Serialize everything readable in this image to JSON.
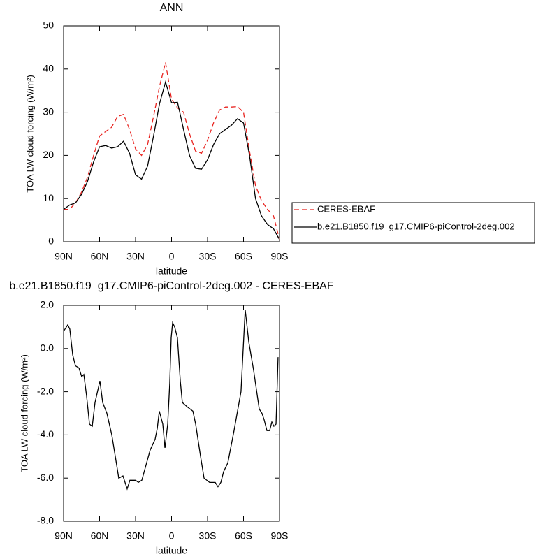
{
  "chart_data": [
    {
      "type": "line",
      "title": "ANN",
      "x_label": "latitude",
      "y_label": "TOA LW cloud forcing (W/m²)",
      "x": [
        90,
        85,
        80,
        75,
        70,
        65,
        60,
        55,
        50,
        45,
        40,
        35,
        30,
        25,
        20,
        15,
        10,
        5,
        0,
        -5,
        -10,
        -15,
        -20,
        -25,
        -30,
        -35,
        -40,
        -45,
        -50,
        -55,
        -60,
        -65,
        -70,
        -75,
        -80,
        -85,
        -90
      ],
      "series": [
        {
          "name": "CERES-EBAF",
          "color": "#e8231f",
          "line_style": "dashed",
          "values": [
            7.5,
            7.5,
            9,
            11.5,
            15,
            20,
            24.5,
            25.5,
            26.5,
            29,
            29.5,
            26,
            21.5,
            20,
            22.5,
            29,
            36,
            41.5,
            33,
            31,
            30,
            25,
            21,
            20.5,
            23.5,
            27.5,
            30.5,
            31.2,
            31.2,
            31.3,
            30,
            21,
            13,
            9.5,
            7.5,
            6,
            0.5
          ]
        },
        {
          "name": "b.e21.B1850.f19_g17.CMIP6-piControl-2deg.002",
          "color": "#000000",
          "line_style": "solid",
          "values": [
            7.5,
            8.5,
            9,
            11,
            14,
            18.5,
            22,
            22.3,
            21.7,
            22,
            23.3,
            20.5,
            15.5,
            14.5,
            17.5,
            24.5,
            32,
            37,
            32.2,
            32.3,
            26,
            20,
            17,
            16.8,
            19,
            22.5,
            25,
            26,
            27,
            28.5,
            27.5,
            20,
            10,
            6,
            4,
            3,
            0.5
          ]
        }
      ],
      "xlim": [
        90,
        -90
      ],
      "xticks": [
        {
          "value": 90,
          "label": "90N"
        },
        {
          "value": 60,
          "label": "60N"
        },
        {
          "value": 30,
          "label": "30N"
        },
        0,
        {
          "value": -30,
          "label": "30S"
        },
        {
          "value": -60,
          "label": "60S"
        },
        {
          "value": -90,
          "label": "90S"
        }
      ],
      "ylim": [
        0,
        50
      ],
      "yticks": [
        0,
        10,
        20,
        30,
        40,
        50
      ],
      "legend": "outside right"
    },
    {
      "type": "line",
      "title": "b.e21.B1850.f19_g17.CMIP6-piControl-2deg.002 - CERES-EBAF",
      "x_label": "latitude",
      "y_label": "TOA LW cloud forcing (W/m²)",
      "x": [
        90.0,
        86.5,
        84.8,
        82.4,
        80.1,
        77.2,
        74.9,
        73.1,
        70.8,
        68.4,
        66.1,
        63.8,
        59.7,
        57.4,
        53.9,
        49.8,
        46.3,
        44.0,
        40.5,
        37.0,
        34.7,
        30.0,
        27.7,
        24.8,
        21.8,
        17.8,
        13.7,
        11.9,
        10.2,
        7.3,
        5.5,
        3.2,
        1.5,
        0.3,
        -0.9,
        -2.6,
        -4.9,
        -7.3,
        -9.0,
        -13.1,
        -17.8,
        -20.1,
        -24.2,
        -27.1,
        -31.7,
        -36.4,
        -38.7,
        -41.1,
        -43.4,
        -46.9,
        -52.1,
        -57.9,
        -61.4,
        -64.4,
        -68.4,
        -73.1,
        -75.4,
        -77.2,
        -79.5,
        -81.8,
        -83.6,
        -85.3,
        -87.1,
        -88.8
      ],
      "values": [
        0.8,
        1.1,
        0.9,
        -0.3,
        -0.8,
        -0.9,
        -1.3,
        -1.2,
        -2.2,
        -3.5,
        -3.6,
        -2.5,
        -1.5,
        -2.5,
        -3,
        -4,
        -5.2,
        -6,
        -5.9,
        -6.5,
        -6.1,
        -6.1,
        -6.2,
        -6.1,
        -5.5,
        -4.7,
        -4.2,
        -3.7,
        -2.9,
        -3.5,
        -4.6,
        -3.5,
        -1.6,
        0.5,
        1.2,
        1.0,
        0.5,
        -1.5,
        -2.5,
        -2.7,
        -2.9,
        -3.5,
        -5,
        -6,
        -6.2,
        -6.2,
        -6.4,
        -6.2,
        -5.7,
        -5.3,
        -3.8,
        -2,
        1.8,
        0.3,
        -1,
        -2.8,
        -3,
        -3.3,
        -3.8,
        -3.8,
        -3.4,
        -3.6,
        -3.5,
        -0.4
      ],
      "color": "#000000",
      "xlim": [
        90,
        -90
      ],
      "xticks": [
        {
          "value": 90,
          "label": "90N"
        },
        {
          "value": 60,
          "label": "60N"
        },
        {
          "value": 30,
          "label": "30N"
        },
        0,
        {
          "value": -30,
          "label": "30S"
        },
        {
          "value": -60,
          "label": "60S"
        },
        {
          "value": -90,
          "label": "90S"
        }
      ],
      "ylim": [
        -8,
        2
      ],
      "yticks": [
        {
          "value": -8,
          "label": "-8.0"
        },
        {
          "value": -6,
          "label": "-6.0"
        },
        {
          "value": -4,
          "label": "-4.0"
        },
        {
          "value": -2,
          "label": "-2.0"
        },
        {
          "value": 0,
          "label": "0.0"
        },
        {
          "value": 2,
          "label": "2.0"
        }
      ]
    }
  ]
}
